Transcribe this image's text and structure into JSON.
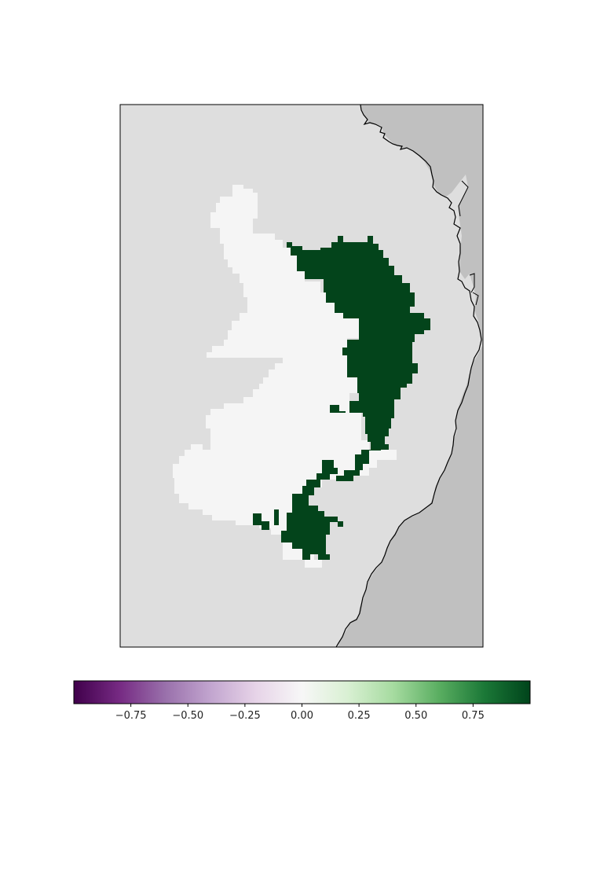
{
  "map": {
    "type": "raster-map",
    "colors": {
      "ocean": "#dedede",
      "land": "#c0c0c0",
      "neutral_region": "#f5f5f5",
      "positive_region": "#03441b",
      "coastline": "#000000"
    }
  },
  "colorbar": {
    "cmap": "PRGn",
    "range": [
      -1,
      1
    ],
    "ticks": [
      {
        "value": -0.75,
        "label": "−0.75"
      },
      {
        "value": -0.5,
        "label": "−0.50"
      },
      {
        "value": -0.25,
        "label": "−0.25"
      },
      {
        "value": 0.0,
        "label": "0.00"
      },
      {
        "value": 0.25,
        "label": "0.25"
      },
      {
        "value": 0.5,
        "label": "0.50"
      },
      {
        "value": 0.75,
        "label": "0.75"
      }
    ],
    "stops": [
      "#40004b",
      "#762a83",
      "#9970ab",
      "#c2a5cf",
      "#e7d4e8",
      "#f7f7f7",
      "#d9f0d3",
      "#a6dba0",
      "#5aae61",
      "#1b7837",
      "#00441b"
    ]
  }
}
